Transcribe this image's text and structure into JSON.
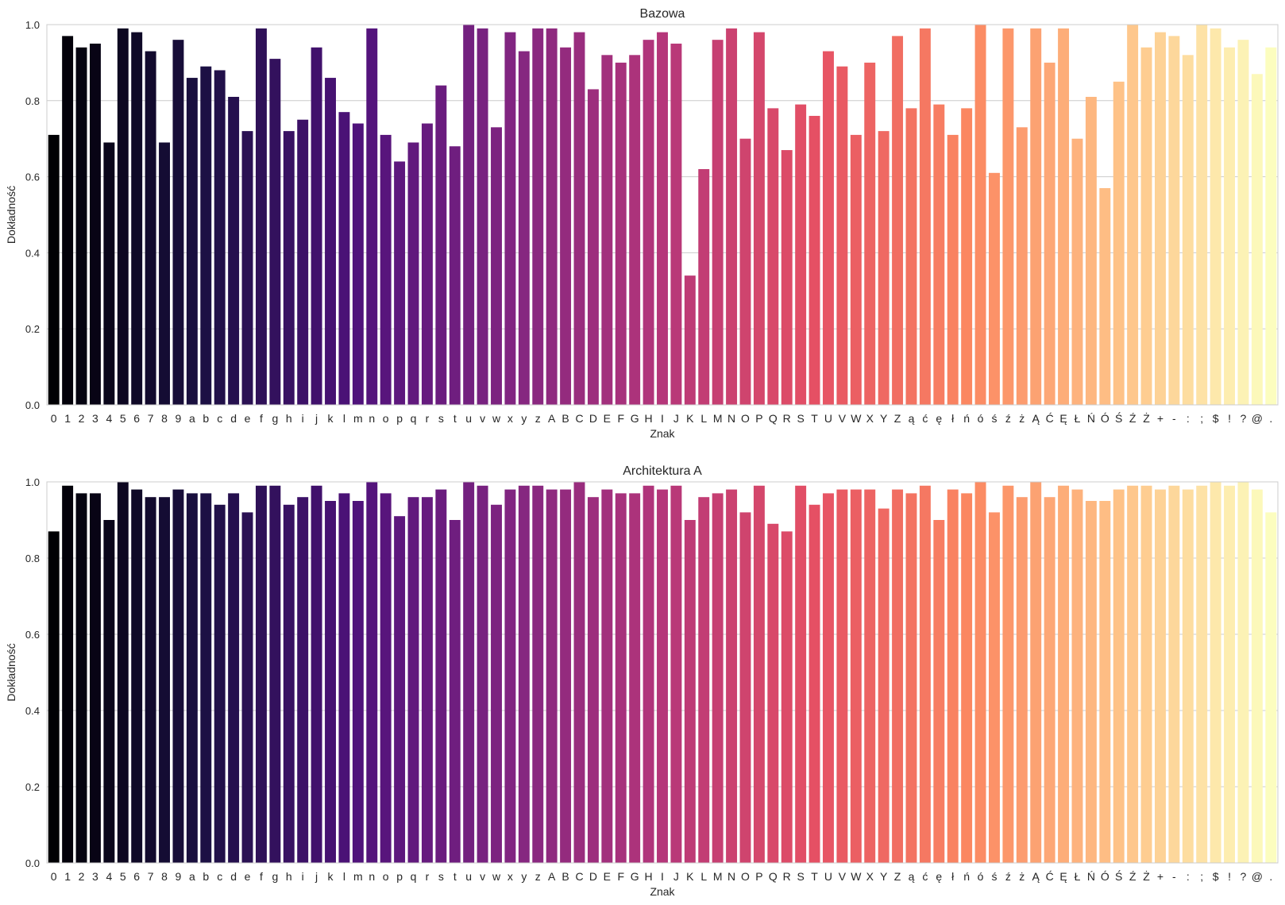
{
  "chart_data": [
    {
      "type": "bar",
      "title": "Bazowa",
      "xlabel": "Znak",
      "ylabel": "Dokładność",
      "ylim": [
        0,
        1.0
      ],
      "yticks": [
        "0.0",
        "0.2",
        "0.4",
        "0.6",
        "0.8",
        "1.0"
      ],
      "grid": "horizontal",
      "palette": "magma",
      "categories": [
        "0",
        "1",
        "2",
        "3",
        "4",
        "5",
        "6",
        "7",
        "8",
        "9",
        "a",
        "b",
        "c",
        "d",
        "e",
        "f",
        "g",
        "h",
        "i",
        "j",
        "k",
        "l",
        "m",
        "n",
        "o",
        "p",
        "q",
        "r",
        "s",
        "t",
        "u",
        "v",
        "w",
        "x",
        "y",
        "z",
        "A",
        "B",
        "C",
        "D",
        "E",
        "F",
        "G",
        "H",
        "I",
        "J",
        "K",
        "L",
        "M",
        "N",
        "O",
        "P",
        "Q",
        "R",
        "S",
        "T",
        "U",
        "V",
        "W",
        "X",
        "Y",
        "Z",
        "ą",
        "ć",
        "ę",
        "ł",
        "ń",
        "ó",
        "ś",
        "ź",
        "ż",
        "Ą",
        "Ć",
        "Ę",
        "Ł",
        "Ń",
        "Ó",
        "Ś",
        "Ź",
        "Ż",
        "+",
        "-",
        ":",
        ";",
        "$",
        "!",
        "?",
        "@",
        "."
      ],
      "values": [
        0.71,
        0.97,
        0.94,
        0.95,
        0.69,
        0.99,
        0.98,
        0.93,
        0.69,
        0.96,
        0.86,
        0.89,
        0.88,
        0.81,
        0.72,
        0.99,
        0.91,
        0.72,
        0.75,
        0.94,
        0.86,
        0.77,
        0.74,
        0.99,
        0.71,
        0.64,
        0.69,
        0.74,
        0.84,
        0.68,
        1.0,
        0.99,
        0.73,
        0.98,
        0.93,
        0.99,
        0.99,
        0.94,
        0.98,
        0.83,
        0.92,
        0.9,
        0.92,
        0.96,
        0.98,
        0.95,
        0.34,
        0.62,
        0.96,
        0.99,
        0.7,
        0.98,
        0.78,
        0.67,
        0.79,
        0.76,
        0.93,
        0.89,
        0.71,
        0.9,
        0.72,
        0.97,
        0.78,
        0.99,
        0.79,
        0.71,
        0.78,
        1.0,
        0.61,
        0.99,
        0.73,
        0.99,
        0.9,
        0.99,
        0.7,
        0.81,
        0.57,
        0.85,
        1.0,
        0.94,
        0.98,
        0.97,
        0.92,
        1.0,
        0.99,
        0.94,
        0.96,
        0.87,
        0.94
      ]
    },
    {
      "type": "bar",
      "title": "Architektura A",
      "xlabel": "Znak",
      "ylabel": "Dokładność",
      "ylim": [
        0,
        1.0
      ],
      "yticks": [
        "0.0",
        "0.2",
        "0.4",
        "0.6",
        "0.8",
        "1.0"
      ],
      "grid": "horizontal",
      "palette": "magma",
      "categories": [
        "0",
        "1",
        "2",
        "3",
        "4",
        "5",
        "6",
        "7",
        "8",
        "9",
        "a",
        "b",
        "c",
        "d",
        "e",
        "f",
        "g",
        "h",
        "i",
        "j",
        "k",
        "l",
        "m",
        "n",
        "o",
        "p",
        "q",
        "r",
        "s",
        "t",
        "u",
        "v",
        "w",
        "x",
        "y",
        "z",
        "A",
        "B",
        "C",
        "D",
        "E",
        "F",
        "G",
        "H",
        "I",
        "J",
        "K",
        "L",
        "M",
        "N",
        "O",
        "P",
        "Q",
        "R",
        "S",
        "T",
        "U",
        "V",
        "W",
        "X",
        "Y",
        "Z",
        "ą",
        "ć",
        "ę",
        "ł",
        "ń",
        "ó",
        "ś",
        "ź",
        "ż",
        "Ą",
        "Ć",
        "Ę",
        "Ł",
        "Ń",
        "Ó",
        "Ś",
        "Ź",
        "Ż",
        "+",
        "-",
        ":",
        ";",
        "$",
        "!",
        "?",
        "@",
        "."
      ],
      "values": [
        0.87,
        0.99,
        0.97,
        0.97,
        0.9,
        1.0,
        0.98,
        0.96,
        0.96,
        0.98,
        0.97,
        0.97,
        0.94,
        0.97,
        0.92,
        0.99,
        0.99,
        0.94,
        0.96,
        0.99,
        0.95,
        0.97,
        0.95,
        1.0,
        0.97,
        0.91,
        0.96,
        0.96,
        0.98,
        0.9,
        1.0,
        0.99,
        0.94,
        0.98,
        0.99,
        0.99,
        0.98,
        0.98,
        1.0,
        0.96,
        0.98,
        0.97,
        0.97,
        0.99,
        0.98,
        0.99,
        0.9,
        0.96,
        0.97,
        0.98,
        0.92,
        0.99,
        0.89,
        0.87,
        0.99,
        0.94,
        0.97,
        0.98,
        0.98,
        0.98,
        0.93,
        0.98,
        0.97,
        0.99,
        0.9,
        0.98,
        0.97,
        1.0,
        0.92,
        0.99,
        0.96,
        1.0,
        0.96,
        0.99,
        0.98,
        0.95,
        0.95,
        0.98,
        0.99,
        0.99,
        0.98,
        0.99,
        0.98,
        0.99,
        1.0,
        0.99,
        1.0,
        0.98,
        0.92
      ]
    }
  ]
}
